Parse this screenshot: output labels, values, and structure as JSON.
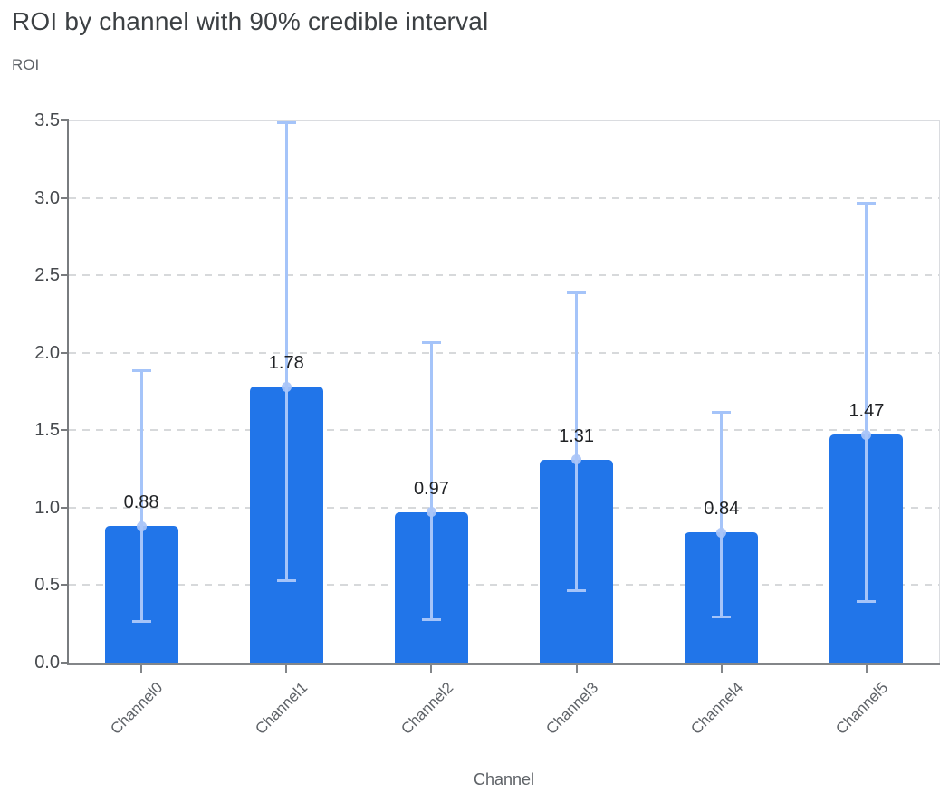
{
  "header": {
    "title": "ROI by channel with 90% credible interval"
  },
  "chart_data": {
    "type": "bar",
    "title": "ROI by channel with 90% credible interval",
    "xlabel": "Channel",
    "ylabel": "ROI",
    "categories": [
      "Channel0",
      "Channel1",
      "Channel2",
      "Channel3",
      "Channel4",
      "Channel5"
    ],
    "values": [
      0.88,
      1.78,
      0.97,
      1.31,
      0.84,
      1.47
    ],
    "value_labels": [
      "0.88",
      "1.78",
      "0.97",
      "1.31",
      "0.84",
      "1.47"
    ],
    "error_bars": {
      "kind": "90% credible interval",
      "low": [
        0.27,
        0.53,
        0.28,
        0.47,
        0.3,
        0.4
      ],
      "high": [
        1.89,
        3.49,
        2.07,
        2.39,
        1.62,
        2.97
      ]
    },
    "y_ticks": [
      "3.5",
      "3.0",
      "2.5",
      "2.0",
      "1.5",
      "1.0",
      "0.5",
      "0.0"
    ],
    "ylim": [
      0,
      3.5
    ],
    "grid": "horizontal-dashed",
    "legend_position": "none",
    "colors": {
      "bar": "#2175e9",
      "error_bar": "#a5c4f9",
      "marker": "#a9c4f7",
      "grid": "#d7d9db",
      "plot_border": "#dadce0",
      "axis": "#797c7f",
      "title_text": "#3c4043",
      "y_tick_text": "#46494d",
      "x_tick_text": "#5f6368",
      "value_label_text": "#1f2124"
    }
  }
}
